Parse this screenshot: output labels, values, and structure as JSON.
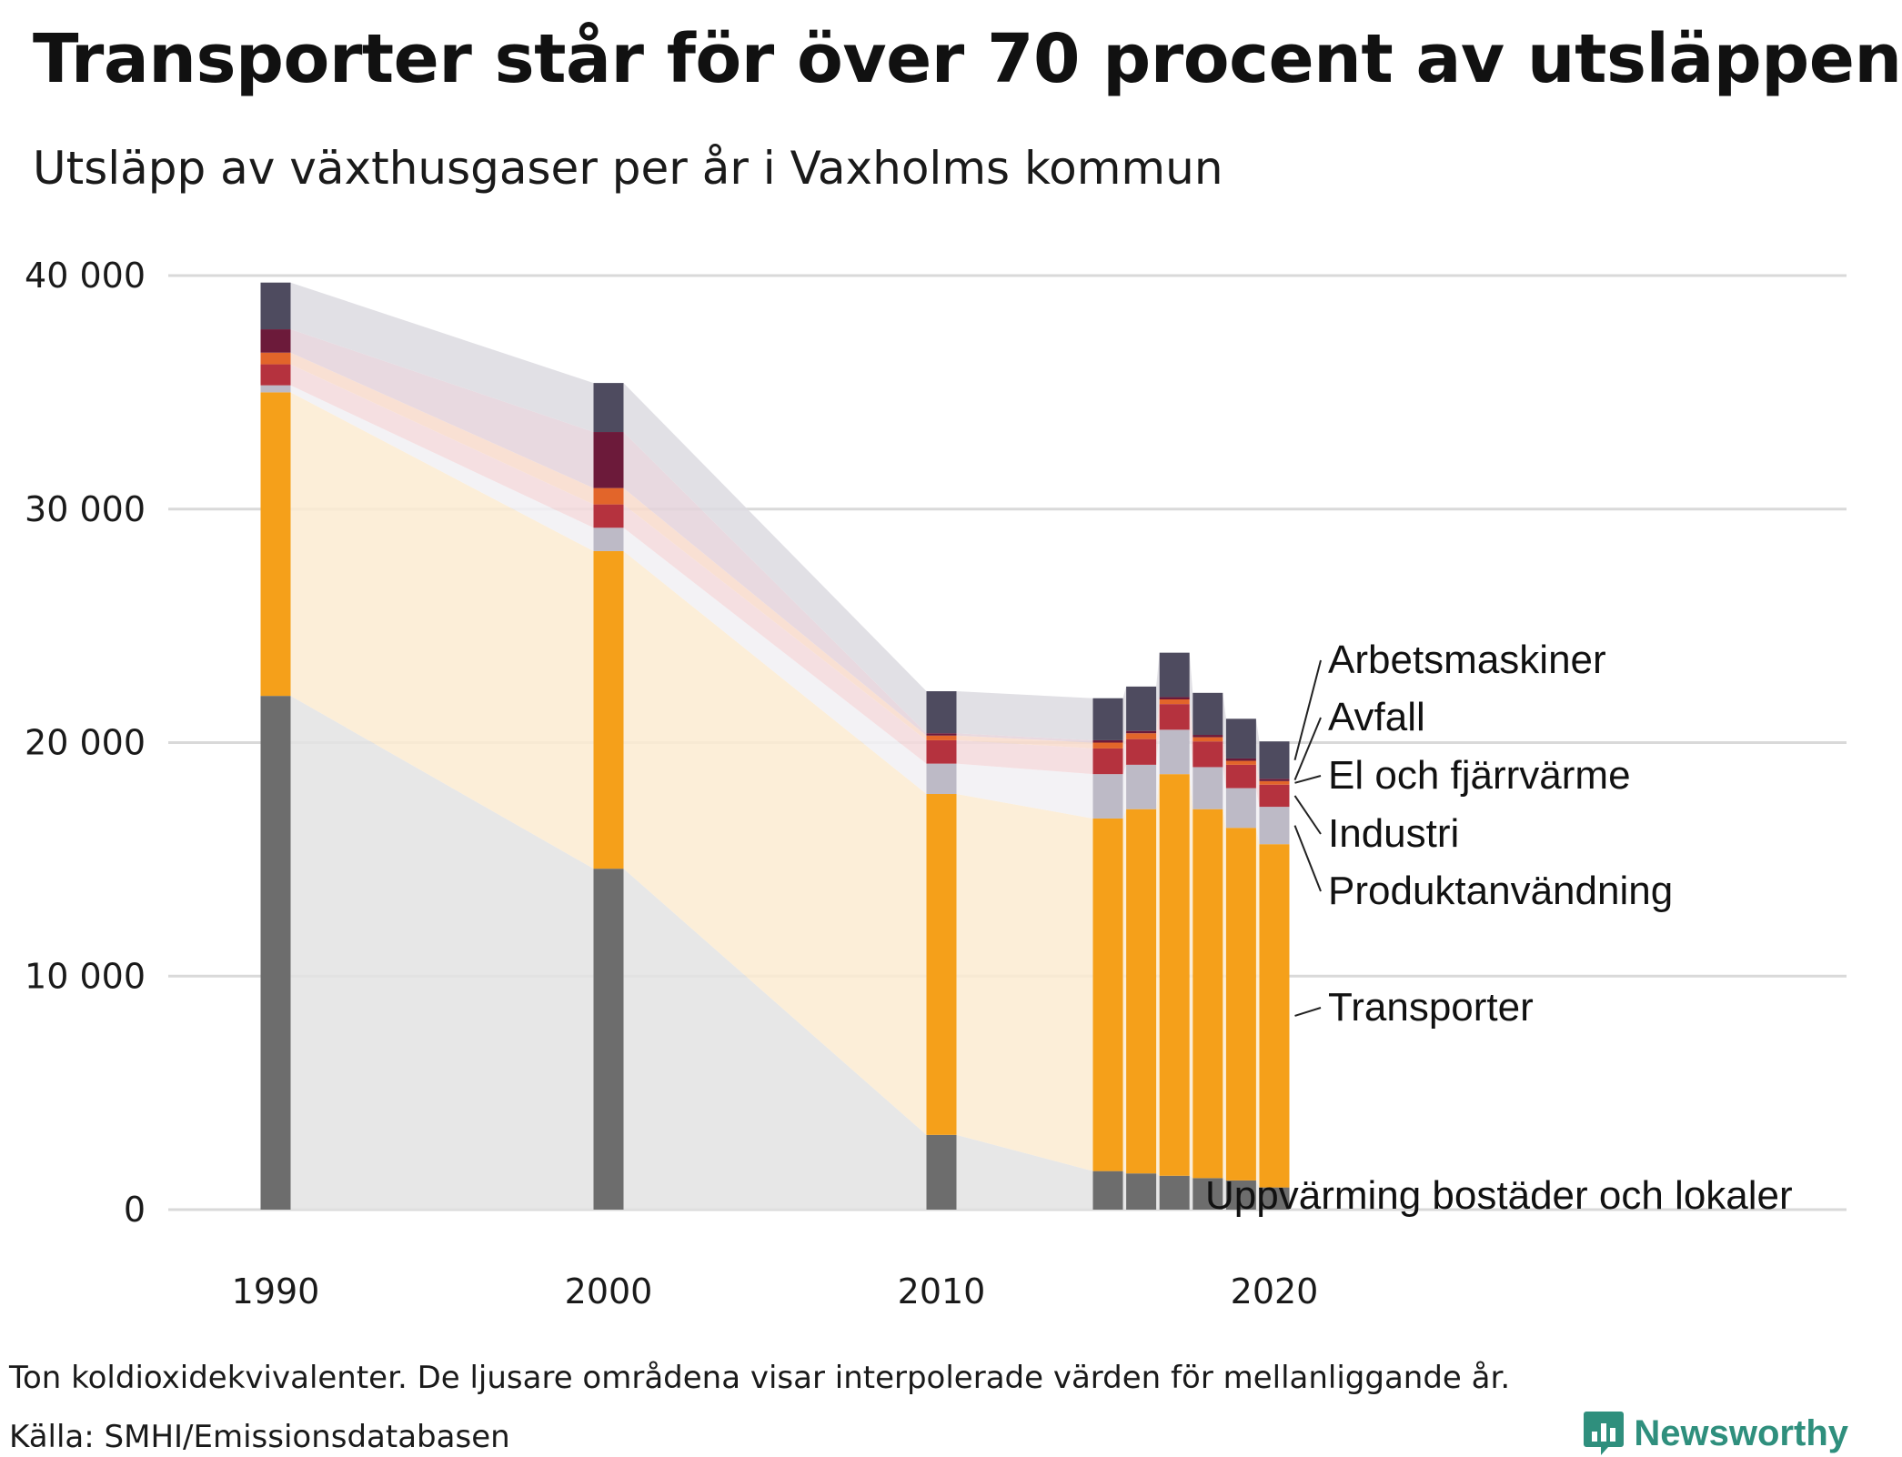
{
  "title": "Transporter står för över 70 procent av utsläppen",
  "subtitle": "Utsläpp av växthusgaser per år i Vaxholms kommun",
  "footnote": "Ton koldioxidekvivalenter. De ljusare områdena visar interpolerade värden för mellanliggande år.",
  "source": "Källa: SMHI/Emissionsdatabasen",
  "brand": {
    "name": "Newsworthy",
    "color": "#2f8f7d",
    "icon": "bar-chart-speech-bubble-icon"
  },
  "chart_data": {
    "type": "bar",
    "stacked": true,
    "interpolated_areas_between_bars": true,
    "x": [
      1990,
      2000,
      2010,
      2015,
      2016,
      2017,
      2018,
      2019,
      2020
    ],
    "x_ticks": [
      "1990",
      "2000",
      "2010",
      "2020"
    ],
    "y_ticks": [
      "0",
      "10 000",
      "20 000",
      "30 000",
      "40 000"
    ],
    "ylim": [
      0,
      40000
    ],
    "grid": true,
    "series": [
      {
        "name": "Uppvärming bostäder och lokaler",
        "color": "#6d6d6d",
        "area_color": "#e3e3e3",
        "values": [
          22000,
          14600,
          3200,
          1650,
          1550,
          1450,
          1350,
          1250,
          950
        ]
      },
      {
        "name": "Transporter",
        "color": "#f5a01a",
        "area_color": "#fcebd1",
        "values": [
          13000,
          13600,
          14600,
          15100,
          15600,
          17200,
          15800,
          15100,
          14700
        ]
      },
      {
        "name": "Produktanvändning",
        "color": "#bdbac6",
        "area_color": "#f1f0f3",
        "values": [
          300,
          1000,
          1300,
          1900,
          1900,
          1900,
          1800,
          1700,
          1600
        ]
      },
      {
        "name": "Industri",
        "color": "#b5323e",
        "area_color": "#f3d9dc",
        "values": [
          900,
          1000,
          1000,
          1100,
          1100,
          1100,
          1100,
          1000,
          950
        ]
      },
      {
        "name": "El och fjärrvärme",
        "color": "#e2652a",
        "area_color": "#f8dacb",
        "values": [
          500,
          700,
          200,
          250,
          250,
          200,
          180,
          170,
          150
        ]
      },
      {
        "name": "Avfall",
        "color": "#6c1a3a",
        "area_color": "#e4d2da",
        "values": [
          1000,
          2400,
          100,
          100,
          100,
          100,
          100,
          100,
          100
        ]
      },
      {
        "name": "Arbetsmaskiner",
        "color": "#4e4b5f",
        "area_color": "#dcdbe0",
        "values": [
          2000,
          2100,
          1800,
          1800,
          1900,
          1900,
          1800,
          1700,
          1600
        ]
      }
    ]
  }
}
